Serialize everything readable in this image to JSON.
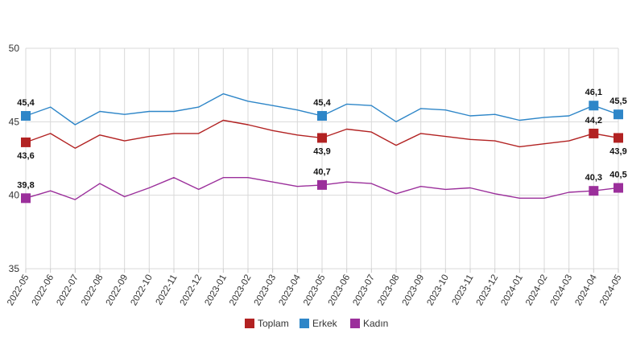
{
  "chart_data": {
    "type": "line",
    "x": [
      "2022-05",
      "2022-06",
      "2022-07",
      "2022-08",
      "2022-09",
      "2022-10",
      "2022-11",
      "2022-12",
      "2023-01",
      "2023-02",
      "2023-03",
      "2023-04",
      "2023-05",
      "2023-06",
      "2023-07",
      "2023-08",
      "2023-09",
      "2023-10",
      "2023-11",
      "2023-12",
      "2024-01",
      "2024-02",
      "2024-03",
      "2024-04",
      "2024-05"
    ],
    "ylim": [
      35,
      50
    ],
    "yticks": [
      35,
      40,
      45,
      50
    ],
    "grid": true,
    "legend_position": "bottom",
    "series": [
      {
        "name": "Toplam",
        "color": "#b22222",
        "values": [
          43.6,
          44.2,
          43.2,
          44.1,
          43.7,
          44.0,
          44.2,
          44.2,
          45.1,
          44.8,
          44.4,
          44.1,
          43.9,
          44.5,
          44.3,
          43.4,
          44.2,
          44.0,
          43.8,
          43.7,
          43.3,
          43.5,
          43.7,
          44.2,
          43.9
        ],
        "labels": [
          {
            "index": 0,
            "text": "43,6",
            "pos": "below"
          },
          {
            "index": 12,
            "text": "43,9",
            "pos": "below"
          },
          {
            "index": 23,
            "text": "44,2",
            "pos": "above"
          },
          {
            "index": 24,
            "text": "43,9",
            "pos": "below"
          }
        ]
      },
      {
        "name": "Erkek",
        "color": "#2e86c8",
        "values": [
          45.4,
          46.0,
          44.8,
          45.7,
          45.5,
          45.7,
          45.7,
          46.0,
          46.9,
          46.4,
          46.1,
          45.8,
          45.4,
          46.2,
          46.1,
          45.0,
          45.9,
          45.8,
          45.4,
          45.5,
          45.1,
          45.3,
          45.4,
          46.1,
          45.5
        ],
        "labels": [
          {
            "index": 0,
            "text": "45,4",
            "pos": "above"
          },
          {
            "index": 12,
            "text": "45,4",
            "pos": "above"
          },
          {
            "index": 23,
            "text": "46,1",
            "pos": "above"
          },
          {
            "index": 24,
            "text": "45,5",
            "pos": "above"
          }
        ]
      },
      {
        "name": "Kadın",
        "color": "#9b2f9b",
        "values": [
          39.8,
          40.3,
          39.7,
          40.8,
          39.9,
          40.5,
          41.2,
          40.4,
          41.2,
          41.2,
          40.9,
          40.6,
          40.7,
          40.9,
          40.8,
          40.1,
          40.6,
          40.4,
          40.5,
          40.1,
          39.8,
          39.8,
          40.2,
          40.3,
          40.5
        ],
        "labels": [
          {
            "index": 0,
            "text": "39,8",
            "pos": "above"
          },
          {
            "index": 12,
            "text": "40,7",
            "pos": "above"
          },
          {
            "index": 23,
            "text": "40,3",
            "pos": "above"
          },
          {
            "index": 24,
            "text": "40,5",
            "pos": "above"
          }
        ]
      }
    ]
  }
}
